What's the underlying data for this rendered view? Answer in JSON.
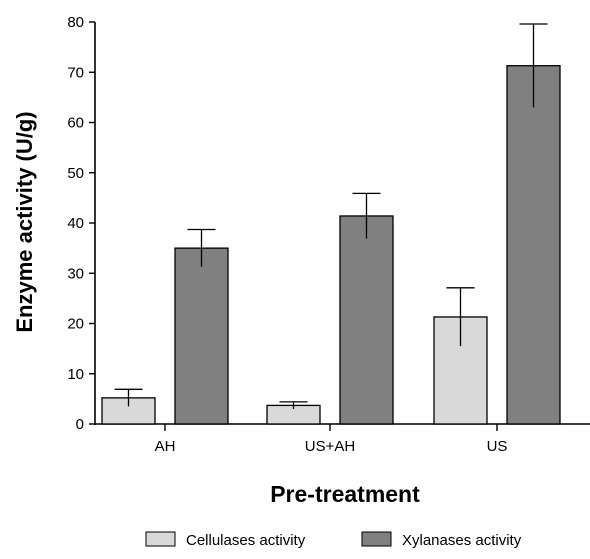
{
  "chart_data": {
    "type": "bar",
    "categories": [
      "AH",
      "US+AH",
      "US"
    ],
    "series": [
      {
        "name": "Cellulases activity",
        "color": "#d9d9d9",
        "values": [
          5.2,
          3.7,
          21.3
        ],
        "errors": [
          1.7,
          0.7,
          5.8
        ]
      },
      {
        "name": "Xylanases activity",
        "color": "#808080",
        "values": [
          35.0,
          41.4,
          71.3
        ],
        "errors": [
          3.7,
          4.5,
          8.3
        ]
      }
    ],
    "ylim": [
      0,
      80
    ],
    "yticks": [
      0,
      10,
      20,
      30,
      40,
      50,
      60,
      70,
      80
    ],
    "xlabel": "Pre-treatment",
    "ylabel": "Enzyme activity (U/g)",
    "grid": false,
    "legend_position": "bottom-center"
  }
}
